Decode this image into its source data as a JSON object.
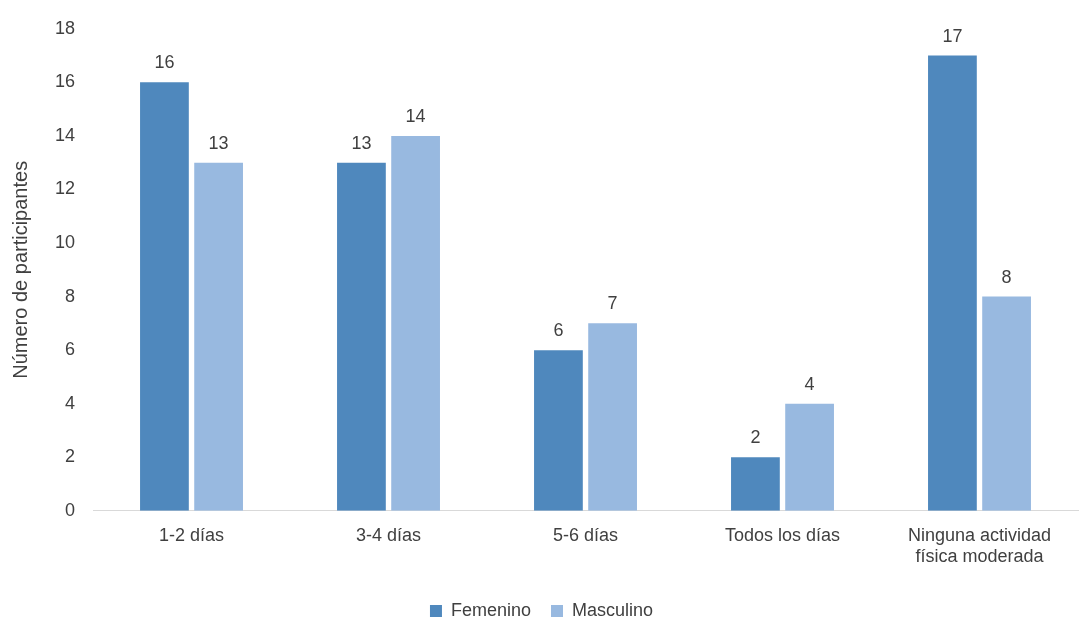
{
  "chart_data": {
    "type": "bar",
    "ylabel": "Número de participantes",
    "categories": [
      "1-2 días",
      "3-4 días",
      "5-6 días",
      "Todos los días",
      "Ninguna actividad física moderada"
    ],
    "series": [
      {
        "name": "Femenino",
        "color": "#4f88bd",
        "values": [
          16,
          13,
          6,
          2,
          17
        ]
      },
      {
        "name": "Masculino",
        "color": "#98b9e0",
        "values": [
          13,
          14,
          7,
          4,
          8
        ]
      }
    ],
    "ylim": [
      0,
      18
    ],
    "yticks": [
      0,
      2,
      4,
      6,
      8,
      10,
      12,
      14,
      16,
      18
    ],
    "grid": false,
    "legend": "bottom",
    "data_labels": true
  }
}
